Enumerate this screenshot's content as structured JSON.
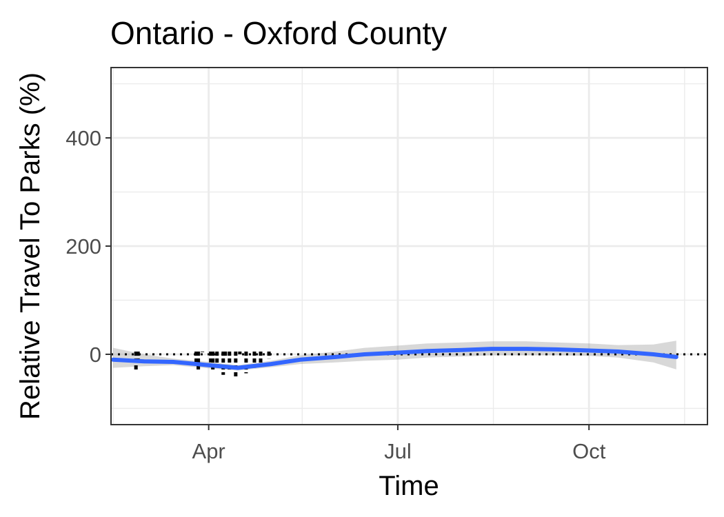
{
  "chart_data": {
    "type": "line",
    "title": "Ontario - Oxford County",
    "xlabel": "Time",
    "ylabel": "Relative Travel To Parks (%)",
    "x_ticks": [
      "Apr",
      "Jul",
      "Oct"
    ],
    "y_ticks": [
      0,
      200,
      400
    ],
    "xlim": [
      "2020-02-14",
      "2020-11-27"
    ],
    "ylim": [
      -130,
      530
    ],
    "grid": true,
    "reference_line": {
      "y": 0,
      "style": "dotted"
    },
    "series": [
      {
        "kind": "observed",
        "x": [
          "2020-02-26",
          "2020-02-27",
          "2020-03-26",
          "2020-03-27",
          "2020-03-29",
          "2020-04-02",
          "2020-04-03",
          "2020-04-05",
          "2020-04-08",
          "2020-04-09",
          "2020-04-11",
          "2020-04-14",
          "2020-04-16",
          "2020-04-19",
          "2020-04-23",
          "2020-04-26",
          "2020-04-30"
        ],
        "y": [
          -30,
          -18,
          -20,
          -28,
          4,
          -15,
          -32,
          -20,
          -38,
          -5,
          -30,
          -42,
          0,
          -35,
          -25,
          -22,
          -8
        ]
      },
      {
        "kind": "smooth",
        "x": [
          "2020-02-15",
          "2020-03-01",
          "2020-03-15",
          "2020-04-01",
          "2020-04-15",
          "2020-05-01",
          "2020-05-15",
          "2020-06-01",
          "2020-06-15",
          "2020-07-01",
          "2020-07-15",
          "2020-08-01",
          "2020-08-15",
          "2020-09-01",
          "2020-09-15",
          "2020-10-01",
          "2020-10-15",
          "2020-11-01",
          "2020-11-12"
        ],
        "y": [
          -10,
          -13,
          -14,
          -20,
          -25,
          -18,
          -10,
          -5,
          0,
          3,
          6,
          8,
          10,
          10,
          9,
          7,
          5,
          0,
          -5
        ],
        "ci_lower": [
          -25,
          -22,
          -20,
          -26,
          -30,
          -24,
          -18,
          -15,
          -12,
          -10,
          -6,
          -4,
          -2,
          -2,
          -2,
          -3,
          -6,
          -15,
          -28
        ],
        "ci_upper": [
          12,
          0,
          -8,
          -14,
          -20,
          -12,
          -2,
          5,
          12,
          16,
          20,
          22,
          24,
          24,
          22,
          20,
          17,
          18,
          25
        ]
      }
    ]
  }
}
